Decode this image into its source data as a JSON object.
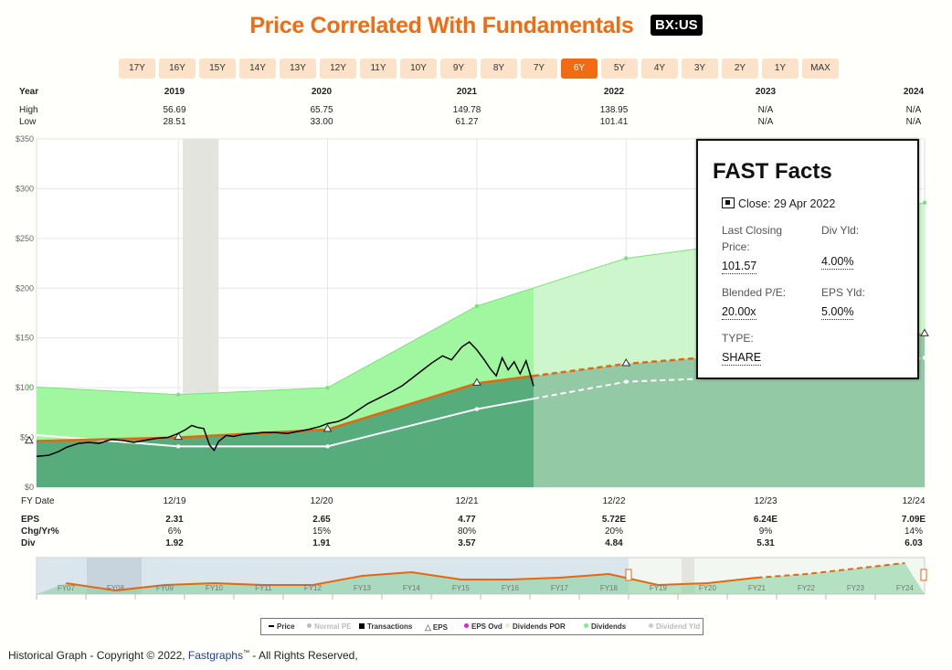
{
  "title": "Price Correlated With Fundamentals",
  "ticker": "BX:US",
  "periods": [
    "17Y",
    "16Y",
    "15Y",
    "14Y",
    "13Y",
    "12Y",
    "11Y",
    "10Y",
    "9Y",
    "8Y",
    "7Y",
    "6Y",
    "5Y",
    "4Y",
    "3Y",
    "2Y",
    "1Y",
    "MAX"
  ],
  "active_period": "6Y",
  "colors": {
    "accent": "#f26b12",
    "green_band": "#99f59a",
    "normal_pe": "#5aad7b",
    "price": "#000000",
    "eps_line": "#e5670f",
    "dividend_line": "#ffffff"
  },
  "year_table": {
    "labels": {
      "year": "Year",
      "high": "High",
      "low": "Low"
    },
    "years": [
      "2019",
      "2020",
      "2021",
      "2022",
      "2023",
      "2024"
    ],
    "high": [
      "56.69",
      "65.75",
      "149.78",
      "138.95",
      "N/A",
      "N/A"
    ],
    "low": [
      "28.51",
      "33.00",
      "61.27",
      "101.41",
      "N/A",
      "N/A"
    ]
  },
  "bottom_table": {
    "labels": {
      "fy_date": "FY Date",
      "eps": "EPS",
      "chg": "Chg/Yr%",
      "div": "Div"
    },
    "fy_dates": [
      "12/19",
      "12/20",
      "12/21",
      "12/22",
      "12/23",
      "12/24"
    ],
    "eps": [
      "2.31",
      "2.65",
      "4.77",
      "5.72E",
      "6.24E",
      "7.09E"
    ],
    "chg": [
      "6%",
      "15%",
      "80%",
      "20%",
      "9%",
      "14%"
    ],
    "div": [
      "1.92",
      "1.91",
      "3.57",
      "4.84",
      "5.31",
      "6.03"
    ]
  },
  "chart_data": {
    "type": "area",
    "y_ticks": [
      "$0",
      "$50",
      "$100",
      "$150",
      "$200",
      "$250",
      "$300",
      "$350"
    ],
    "ylim": [
      0,
      350
    ],
    "x_range": [
      2019.0,
      2024.95
    ],
    "fy_points": [
      2018.95,
      2019.95,
      2020.95,
      2021.95,
      2022.95,
      2023.95,
      2024.95
    ],
    "normal_pe_values": [
      46.2,
      50.0,
      58.0,
      104.4,
      124.0,
      136.0,
      154.0
    ],
    "green_band_values": [
      101.0,
      93.0,
      100.0,
      182.0,
      230.0,
      250.0,
      286.0
    ],
    "dividend_values": [
      53.0,
      41.0,
      41.0,
      78.5,
      106.0,
      112.0,
      130.0
    ],
    "forecast_start": 2022.33,
    "recession_shade": [
      2019.98,
      2020.22
    ],
    "price": [
      [
        2019.0,
        31
      ],
      [
        2019.08,
        32
      ],
      [
        2019.15,
        36
      ],
      [
        2019.2,
        40
      ],
      [
        2019.28,
        44
      ],
      [
        2019.35,
        45
      ],
      [
        2019.42,
        44
      ],
      [
        2019.5,
        48
      ],
      [
        2019.58,
        47
      ],
      [
        2019.65,
        45
      ],
      [
        2019.72,
        47
      ],
      [
        2019.8,
        49
      ],
      [
        2019.88,
        50
      ],
      [
        2019.95,
        54
      ],
      [
        2020.0,
        58
      ],
      [
        2020.04,
        62
      ],
      [
        2020.08,
        60
      ],
      [
        2020.12,
        59
      ],
      [
        2020.16,
        42
      ],
      [
        2020.19,
        37
      ],
      [
        2020.22,
        46
      ],
      [
        2020.27,
        52
      ],
      [
        2020.32,
        51
      ],
      [
        2020.38,
        53
      ],
      [
        2020.45,
        54
      ],
      [
        2020.52,
        55
      ],
      [
        2020.6,
        55
      ],
      [
        2020.68,
        54
      ],
      [
        2020.75,
        56
      ],
      [
        2020.82,
        58
      ],
      [
        2020.9,
        61
      ],
      [
        2020.95,
        64
      ],
      [
        2021.02,
        66
      ],
      [
        2021.08,
        70
      ],
      [
        2021.15,
        77
      ],
      [
        2021.22,
        84
      ],
      [
        2021.3,
        90
      ],
      [
        2021.38,
        96
      ],
      [
        2021.45,
        102
      ],
      [
        2021.52,
        110
      ],
      [
        2021.58,
        117
      ],
      [
        2021.65,
        125
      ],
      [
        2021.72,
        132
      ],
      [
        2021.78,
        128
      ],
      [
        2021.85,
        141
      ],
      [
        2021.9,
        146
      ],
      [
        2021.95,
        138
      ],
      [
        2022.0,
        128
      ],
      [
        2022.04,
        119
      ],
      [
        2022.08,
        112
      ],
      [
        2022.12,
        130
      ],
      [
        2022.16,
        118
      ],
      [
        2022.2,
        126
      ],
      [
        2022.24,
        114
      ],
      [
        2022.28,
        127
      ],
      [
        2022.31,
        112
      ],
      [
        2022.33,
        101.57
      ]
    ],
    "mini_years": [
      "FY07",
      "FY08",
      "FY09",
      "FY10",
      "FY11",
      "FY12",
      "FY13",
      "FY14",
      "FY15",
      "FY16",
      "FY17",
      "FY18",
      "FY19",
      "FY20",
      "FY21",
      "FY22",
      "FY23",
      "FY24"
    ],
    "mini_eps": [
      0.3,
      0.1,
      0.25,
      0.3,
      0.25,
      0.25,
      0.5,
      0.6,
      0.4,
      0.4,
      0.45,
      0.55,
      0.25,
      0.3,
      0.45,
      0.55,
      0.7,
      0.85
    ]
  },
  "facts": {
    "title": "FAST Facts",
    "close_label": "Close: 29 Apr 2022",
    "last_closing_label": "Last Closing Price:",
    "last_closing_value": "101.57",
    "div_yld_label": "Div Yld:",
    "div_yld_value": "4.00%",
    "blended_pe_label": "Blended P/E:",
    "blended_pe_value": "20.00x",
    "eps_yld_label": "EPS Yld:",
    "eps_yld_value": "5.00%",
    "type_label": "TYPE:",
    "type_value": "SHARE"
  },
  "legend": [
    {
      "label": "Price",
      "color": "#000000",
      "symbol": "dash"
    },
    {
      "label": "Normal PE",
      "color": "#bbbbbb",
      "symbol": "dot"
    },
    {
      "label": "Transactions",
      "color": "#000000",
      "symbol": "square"
    },
    {
      "label": "EPS",
      "color": "#000000",
      "symbol": "triangle"
    },
    {
      "label": "EPS Ovd",
      "color": "#e020d0",
      "symbol": "dot"
    },
    {
      "label": "Dividends POR",
      "color": "#f4e6c8",
      "symbol": "dot"
    },
    {
      "label": "Dividends",
      "color": "#7ef07d",
      "symbol": "dot"
    },
    {
      "label": "Dividend Yld",
      "color": "#cccccc",
      "symbol": "dot"
    }
  ],
  "footer": {
    "prefix": "Historical Graph - Copyright © 2022, ",
    "brand": "Fastgraphs",
    "tm": "™",
    "suffix": " - All Rights Reserved,"
  }
}
